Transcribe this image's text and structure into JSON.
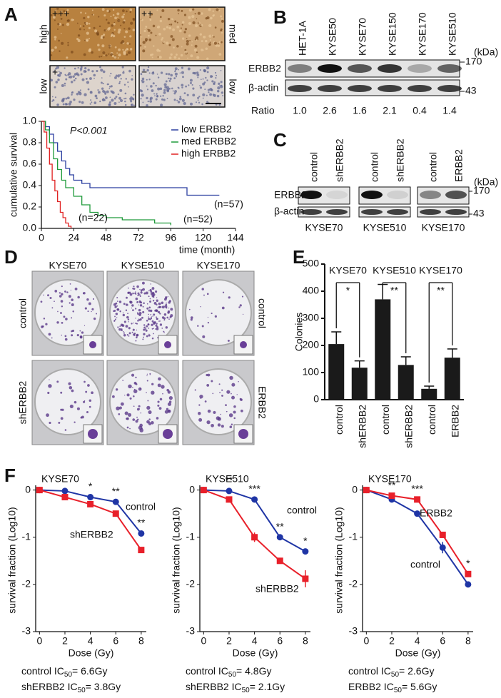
{
  "panel_labels": [
    "A",
    "B",
    "C",
    "D",
    "E",
    "F"
  ],
  "ihc": {
    "scores": [
      "+++",
      "++",
      "+",
      "−"
    ],
    "levels": [
      "high",
      "med",
      "low",
      "low"
    ]
  },
  "blot_b": {
    "lanes": [
      "HET-1A",
      "KYSE50",
      "KYSE70",
      "KYSE150",
      "KYSE170",
      "KYSE510"
    ],
    "rows": [
      "ERBB2",
      "β-actin"
    ],
    "unit": "(kDa)",
    "markers": [
      "170",
      "43"
    ],
    "ratio": {
      "label": "Ratio",
      "values": [
        1.0,
        2.6,
        1.6,
        2.1,
        0.4,
        1.4
      ],
      "value_labels": [
        "1.0",
        "2.6",
        "1.6",
        "2.1",
        "0.4",
        "1.4"
      ]
    }
  },
  "blot_c": {
    "groups": [
      {
        "cell_line": "KYSE70",
        "lanes": [
          "control",
          "shERBB2"
        ]
      },
      {
        "cell_line": "KYSE510",
        "lanes": [
          "control",
          "shERBB2"
        ]
      },
      {
        "cell_line": "KYSE170",
        "lanes": [
          "control",
          "ERBB2"
        ]
      }
    ],
    "rows": [
      "ERBB2",
      "β-actin"
    ],
    "unit": "(kDa)",
    "markers": [
      "170",
      "43"
    ]
  },
  "colony": {
    "cell_lines": [
      "KYSE70",
      "KYSE510",
      "KYSE170"
    ],
    "row_labels_left": [
      "control",
      "shERBB2"
    ],
    "row_labels_right": [
      "control",
      "ERBB2"
    ]
  },
  "chart_data": [
    {
      "type": "step",
      "xlabel": "time (month)",
      "ylabel": "cumulative survival",
      "annotation": "P<0.001",
      "xlim": [
        0,
        144
      ],
      "xticks": [
        0,
        24,
        48,
        72,
        96,
        120,
        144
      ],
      "ylim": [
        0,
        1
      ],
      "yticks": [
        {
          "value": 0,
          "label": "0.0"
        },
        0.2,
        0.4,
        0.6,
        0.8,
        {
          "value": 1,
          "label": "1.0"
        }
      ],
      "series": [
        {
          "name": "low ERBB2",
          "color": "#2b3fa0",
          "n_label": "(n=57)",
          "x": [
            0,
            3,
            6,
            9,
            12,
            15,
            18,
            21,
            24,
            30,
            36,
            108,
            132
          ],
          "values": [
            1,
            0.95,
            0.88,
            0.8,
            0.72,
            0.63,
            0.56,
            0.5,
            0.45,
            0.42,
            0.38,
            0.31,
            0.31
          ]
        },
        {
          "name": "med ERBB2",
          "color": "#1e9a3a",
          "n_label": "(n=52)",
          "x": [
            0,
            3,
            6,
            9,
            12,
            15,
            18,
            24,
            30,
            36,
            42,
            48,
            60,
            84,
            96
          ],
          "values": [
            1,
            0.92,
            0.8,
            0.65,
            0.55,
            0.45,
            0.38,
            0.3,
            0.22,
            0.15,
            0.12,
            0.1,
            0.08,
            0.05,
            0.03
          ]
        },
        {
          "name": "high ERBB2",
          "color": "#e02020",
          "n_label": "(n=22)",
          "x": [
            0,
            2,
            4,
            6,
            8,
            10,
            12,
            14,
            16,
            18,
            20,
            22
          ],
          "values": [
            1,
            0.9,
            0.75,
            0.6,
            0.45,
            0.35,
            0.25,
            0.15,
            0.1,
            0.05,
            0.02,
            0
          ]
        }
      ]
    },
    {
      "type": "bar",
      "ylabel": "Colonies",
      "groups": [
        "KYSE70",
        "KYSE510",
        "KYSE170"
      ],
      "significance": [
        "*",
        "**",
        "**"
      ],
      "categories": [
        "control",
        "shERBB2",
        "control",
        "shERBB2",
        "control",
        "ERBB2"
      ],
      "values": [
        205,
        118,
        370,
        128,
        40,
        155
      ],
      "errors": [
        45,
        25,
        55,
        30,
        10,
        32
      ],
      "color": "#1a1a1a",
      "ylim": [
        0,
        500
      ],
      "yticks": [
        0,
        100,
        200,
        300,
        400,
        500
      ]
    },
    {
      "type": "line",
      "title": "KYSE70",
      "xlabel": "Dose (Gy)",
      "ylabel": "survival fraction (Log10)",
      "x": [
        0,
        2,
        4,
        6,
        8
      ],
      "xlim": [
        -0.3,
        8.4
      ],
      "xticks": [
        0,
        2,
        4,
        6,
        8
      ],
      "ylim": [
        -3,
        0.1
      ],
      "yticks": [
        -3,
        -2,
        -1,
        0
      ],
      "significance": [
        null,
        null,
        "*",
        "**",
        "**"
      ],
      "series": [
        {
          "name": "control",
          "color": "#1f35a5",
          "values": [
            0,
            -0.02,
            -0.15,
            -0.25,
            -0.92
          ],
          "errors": [
            0,
            0,
            0.03,
            0.03,
            0.03
          ]
        },
        {
          "name": "shERBB2",
          "color": "#e8202a",
          "values": [
            0,
            -0.15,
            -0.3,
            -0.5,
            -1.27
          ],
          "errors": [
            0,
            0.03,
            0.03,
            0.03,
            0.04
          ]
        }
      ],
      "ic50": [
        {
          "prefix": "control IC",
          "subscript": "50",
          "suffix": "= 6.6Gy"
        },
        {
          "prefix": "shERBB2 IC",
          "subscript": "50",
          "suffix": "= 3.8Gy"
        }
      ]
    },
    {
      "type": "line",
      "title": "KYSE510",
      "xlabel": "Dose (Gy)",
      "ylabel": "survival fraction (Log10)",
      "x": [
        0,
        2,
        4,
        6,
        8
      ],
      "xlim": [
        -0.3,
        8.4
      ],
      "xticks": [
        0,
        2,
        4,
        6,
        8
      ],
      "ylim": [
        -3,
        0.1
      ],
      "yticks": [
        -3,
        -2,
        -1,
        0
      ],
      "significance": [
        null,
        "**",
        "***",
        "**",
        "*"
      ],
      "series": [
        {
          "name": "control",
          "color": "#1f35a5",
          "values": [
            0,
            -0.02,
            -0.2,
            -1.0,
            -1.3
          ],
          "errors": [
            0,
            0,
            0.03,
            0.04,
            0.04
          ]
        },
        {
          "name": "shERBB2",
          "color": "#e8202a",
          "values": [
            0,
            -0.2,
            -1.0,
            -1.5,
            -1.88
          ],
          "errors": [
            0,
            0.03,
            0.1,
            0.04,
            0.18
          ]
        }
      ],
      "ic50": [
        {
          "prefix": "control IC",
          "subscript": "50",
          "suffix": "= 4.8Gy"
        },
        {
          "prefix": "shERBB2 IC",
          "subscript": "50",
          "suffix": "= 2.1Gy"
        }
      ]
    },
    {
      "type": "line",
      "title": "KYSE170",
      "xlabel": "Dose (Gy)",
      "ylabel": "survival fraction (Log10)",
      "x": [
        0,
        2,
        4,
        6,
        8
      ],
      "xlim": [
        -0.3,
        8.4
      ],
      "xticks": [
        0,
        2,
        4,
        6,
        8
      ],
      "ylim": [
        -3,
        0.1
      ],
      "yticks": [
        -3,
        -2,
        -1,
        0
      ],
      "significance": [
        null,
        "**",
        "***",
        null,
        "*"
      ],
      "series": [
        {
          "name": "control",
          "color": "#1f35a5",
          "values": [
            0,
            -0.2,
            -0.5,
            -1.22,
            -2.0
          ],
          "errors": [
            0,
            0.03,
            0.03,
            0.12,
            0.05
          ]
        },
        {
          "name": "ERBB2",
          "color": "#e8202a",
          "values": [
            0,
            -0.12,
            -0.2,
            -0.95,
            -1.78
          ],
          "errors": [
            0,
            0.03,
            0.03,
            0.05,
            0.05
          ]
        }
      ],
      "ic50": [
        {
          "prefix": "control IC",
          "subscript": "50",
          "suffix": "= 2.6Gy"
        },
        {
          "prefix": "ERBB2 IC",
          "subscript": "50",
          "suffix": "= 5.6Gy"
        }
      ]
    }
  ]
}
